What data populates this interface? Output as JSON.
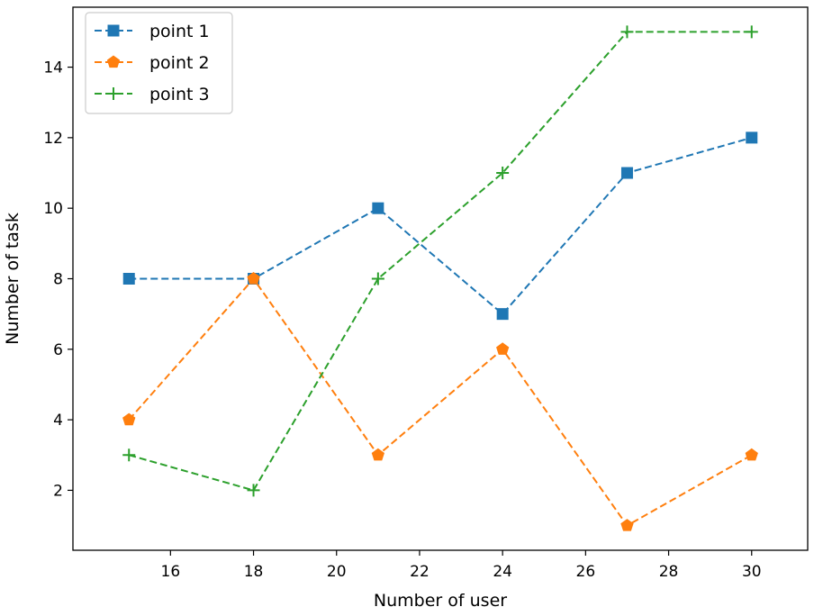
{
  "chart_data": {
    "type": "line",
    "title": "",
    "xlabel": "Number of user",
    "ylabel": "Number of task",
    "x": [
      15,
      18,
      21,
      24,
      27,
      30
    ],
    "xlim": [
      13.65,
      31.35
    ],
    "ylim": [
      0.3,
      15.7
    ],
    "xticks": [
      16,
      18,
      20,
      22,
      24,
      26,
      28,
      30
    ],
    "yticks": [
      2,
      4,
      6,
      8,
      10,
      12,
      14
    ],
    "grid": false,
    "legend_position": "top-left",
    "series": [
      {
        "name": "point 1",
        "values": [
          8,
          8,
          10,
          7,
          11,
          12
        ],
        "color": "#1f77b4",
        "marker": "square",
        "linestyle": "dashed"
      },
      {
        "name": "point 2",
        "values": [
          4,
          8,
          3,
          6,
          1,
          3
        ],
        "color": "#ff7f0e",
        "marker": "pentagon",
        "linestyle": "dashed"
      },
      {
        "name": "point 3",
        "values": [
          3,
          2,
          8,
          11,
          15,
          15
        ],
        "color": "#2ca02c",
        "marker": "plus",
        "linestyle": "dashed"
      }
    ]
  }
}
